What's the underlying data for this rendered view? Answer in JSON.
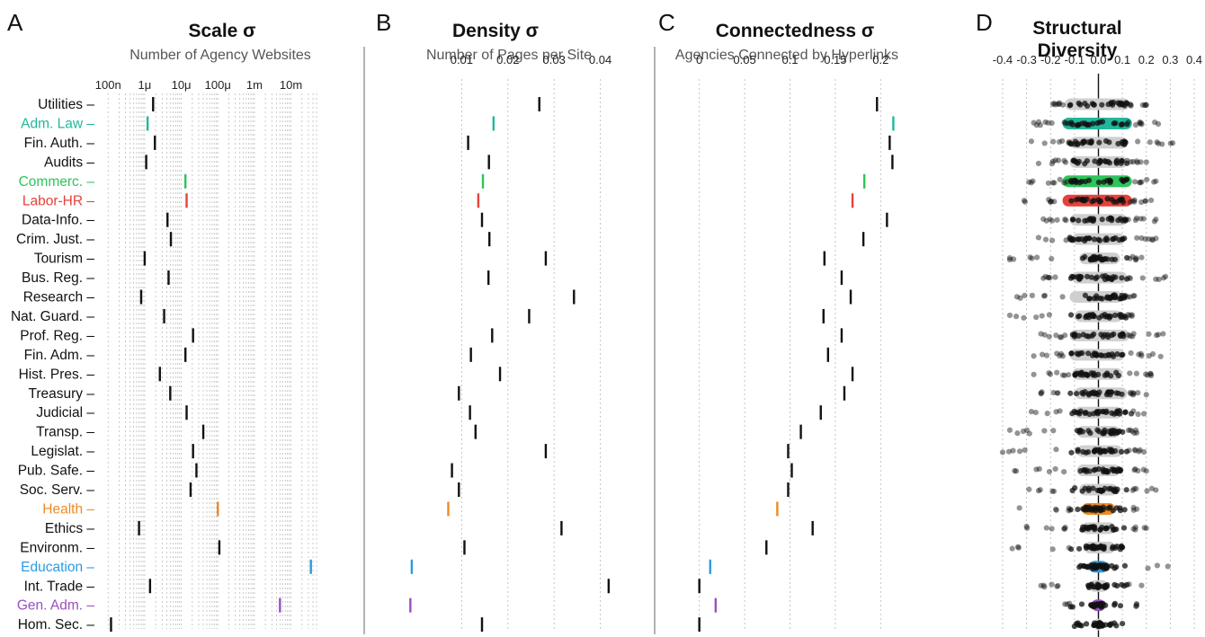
{
  "categories": [
    "Utilities",
    "Adm. Law",
    "Fin. Auth.",
    "Audits",
    "Commerc.",
    "Labor-HR",
    "Data-Info.",
    "Crim. Just.",
    "Tourism",
    "Bus. Reg.",
    "Research",
    "Nat. Guard.",
    "Prof. Reg.",
    "Fin. Adm.",
    "Hist. Pres.",
    "Treasury",
    "Judicial",
    "Transp.",
    "Legislat.",
    "Pub. Safe.",
    "Soc. Serv.",
    "Health",
    "Ethics",
    "Environm.",
    "Education",
    "Int. Trade",
    "Gen. Adm.",
    "Hom. Sec."
  ],
  "colors": {
    "default": "#111111",
    "Adm. Law": "#22b79a",
    "Commerc.": "#2ec45a",
    "Labor-HR": "#e5413b",
    "Health": "#f08a24",
    "Education": "#2b9be0",
    "Gen. Adm.": "#9b4fc0"
  },
  "chart_data": [
    {
      "panel": "A",
      "type": "scatter",
      "title": "Scale σ",
      "subtitle": "Number of Agency Websites",
      "scale": "log10",
      "xlim": [
        5e-08,
        0.05
      ],
      "x_ticks": [
        1e-07,
        1e-06,
        1e-05,
        0.0001,
        0.001,
        0.01
      ],
      "x_tick_labels": [
        "100n",
        "1μ",
        "10μ",
        "100μ",
        "1m",
        "10m"
      ],
      "values": [
        1.7e-06,
        1.2e-06,
        1.9e-06,
        1.1e-06,
        1.3e-05,
        1.4e-05,
        4.2e-06,
        5.2e-06,
        1e-06,
        4.5e-06,
        8e-07,
        3.4e-06,
        2.1e-05,
        1.3e-05,
        2.6e-06,
        5e-06,
        1.4e-05,
        4e-05,
        2.1e-05,
        2.6e-05,
        1.8e-05,
        0.0001,
        7e-07,
        0.00011,
        0.035,
        1.4e-06,
        0.005,
        1.2e-07
      ]
    },
    {
      "panel": "B",
      "type": "scatter",
      "title": "Density σ",
      "subtitle": "Number of Pages per Site",
      "xlim": [
        -0.0035,
        0.043
      ],
      "x_ticks": [
        0.01,
        0.02,
        0.03,
        0.04
      ],
      "x_tick_labels": [
        "0.01",
        "0.02",
        "0.03",
        "0.04"
      ],
      "values": [
        0.0268,
        0.0169,
        0.0114,
        0.0159,
        0.0146,
        0.0136,
        0.0144,
        0.016,
        0.0282,
        0.0158,
        0.0343,
        0.0246,
        0.0166,
        0.012,
        0.0183,
        0.0094,
        0.0118,
        0.013,
        0.0282,
        0.0079,
        0.0094,
        0.0071,
        0.0316,
        0.0106,
        -0.0008,
        0.0418,
        -0.0011,
        0.0144
      ]
    },
    {
      "panel": "C",
      "type": "scatter",
      "title": "Connectedness σ",
      "subtitle": "Agencies Connected by Hyperlinks",
      "xlim": [
        -0.0215,
        0.2265
      ],
      "x_ticks": [
        0,
        0.05,
        0.1,
        0.15,
        0.2
      ],
      "x_tick_labels": [
        "0",
        "0.05",
        "0.1",
        "0.15",
        "0.2"
      ],
      "values": [
        0.196,
        0.214,
        0.21,
        0.213,
        0.182,
        0.169,
        0.207,
        0.181,
        0.138,
        0.157,
        0.167,
        0.137,
        0.157,
        0.142,
        0.169,
        0.16,
        0.134,
        0.112,
        0.098,
        0.102,
        0.098,
        0.086,
        0.125,
        0.074,
        0.012,
        0.0,
        0.018,
        0.0
      ]
    },
    {
      "panel": "D",
      "type": "scatter",
      "title": "Structural Diversity",
      "xlim": [
        -0.445,
        0.445
      ],
      "x_ticks": [
        -0.4,
        -0.3,
        -0.2,
        -0.1,
        0.0,
        0.1,
        0.2,
        0.3,
        0.4
      ],
      "x_tick_labels": [
        "-0.4",
        "-0.3",
        "-0.2",
        "-0.1",
        "0.0",
        "0.1",
        "0.2",
        "0.3",
        "0.4"
      ],
      "ranges": [
        [
          -0.19,
          0.2
        ],
        [
          -0.27,
          0.25
        ],
        [
          -0.28,
          0.31
        ],
        [
          -0.25,
          0.2
        ],
        [
          -0.29,
          0.24
        ],
        [
          -0.31,
          0.22
        ],
        [
          -0.23,
          0.24
        ],
        [
          -0.25,
          0.24
        ],
        [
          -0.37,
          0.18
        ],
        [
          -0.23,
          0.28
        ],
        [
          -0.34,
          0.15
        ],
        [
          -0.37,
          0.14
        ],
        [
          -0.24,
          0.27
        ],
        [
          -0.27,
          0.26
        ],
        [
          -0.27,
          0.22
        ],
        [
          -0.24,
          0.2
        ],
        [
          -0.28,
          0.19
        ],
        [
          -0.37,
          0.16
        ],
        [
          -0.4,
          0.19
        ],
        [
          -0.35,
          0.2
        ],
        [
          -0.29,
          0.24
        ],
        [
          -0.33,
          0.16
        ],
        [
          -0.3,
          0.2
        ],
        [
          -0.36,
          0.1
        ],
        [
          -0.08,
          0.29
        ],
        [
          -0.24,
          0.18
        ],
        [
          -0.14,
          0.16
        ],
        [
          -0.1,
          0.1
        ]
      ],
      "iqr": [
        [
          -0.14,
          0.13
        ],
        [
          -0.15,
          0.14
        ],
        [
          -0.12,
          0.12
        ],
        [
          -0.12,
          0.12
        ],
        [
          -0.15,
          0.14
        ],
        [
          -0.15,
          0.14
        ],
        [
          -0.12,
          0.12
        ],
        [
          -0.11,
          0.11
        ],
        [
          -0.08,
          0.09
        ],
        [
          -0.11,
          0.12
        ],
        [
          -0.12,
          0.1
        ],
        [
          -0.1,
          0.1
        ],
        [
          -0.12,
          0.13
        ],
        [
          -0.12,
          0.11
        ],
        [
          -0.11,
          0.1
        ],
        [
          -0.1,
          0.12
        ],
        [
          -0.1,
          0.1
        ],
        [
          -0.09,
          0.09
        ],
        [
          -0.09,
          0.1
        ],
        [
          -0.09,
          0.09
        ],
        [
          -0.08,
          0.08
        ],
        [
          -0.07,
          0.07
        ],
        [
          -0.07,
          0.07
        ],
        [
          -0.06,
          0.07
        ],
        [
          -0.04,
          0.04
        ],
        [
          -0.04,
          0.04
        ],
        [
          -0.03,
          0.03
        ],
        [
          -0.02,
          0.02
        ]
      ]
    }
  ]
}
